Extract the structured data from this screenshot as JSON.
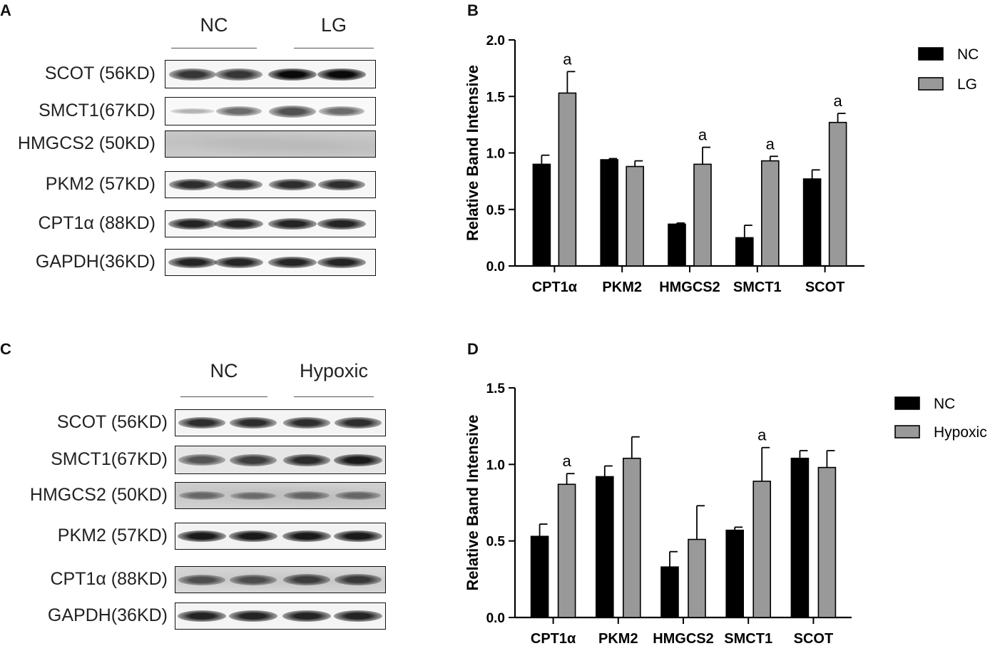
{
  "panels": {
    "a": {
      "letter": "A",
      "groups": [
        "NC",
        "LG"
      ],
      "rows": [
        {
          "label": "SCOT (56KD)",
          "bg": "#f6f6f6",
          "bands": [
            0.75,
            0.75,
            1.0,
            1.0
          ]
        },
        {
          "label": "SMCT1(67KD)",
          "bg": "#f9f9f9",
          "bands": [
            0.05,
            0.45,
            0.6,
            0.45
          ]
        },
        {
          "label": "HMGCS2 (50KD)",
          "bg": "#c9c9c9",
          "bands": [
            0.0,
            0.0,
            0.0,
            0.0
          ]
        },
        {
          "label": "PKM2 (57KD)",
          "bg": "#f7f7f7",
          "bands": [
            0.8,
            0.8,
            0.8,
            0.8
          ]
        },
        {
          "label": "CPT1α (88KD)",
          "bg": "#f7f7f7",
          "bands": [
            0.85,
            0.85,
            0.85,
            0.85
          ]
        },
        {
          "label": "GAPDH(36KD)",
          "bg": "#f7f7f7",
          "bands": [
            0.85,
            0.85,
            0.85,
            0.85
          ]
        }
      ]
    },
    "c": {
      "letter": "C",
      "groups": [
        "NC",
        "Hypoxic"
      ],
      "rows": [
        {
          "label": "SCOT (56KD)",
          "bg": "#f4f4f4",
          "bands": [
            0.8,
            0.8,
            0.8,
            0.8
          ]
        },
        {
          "label": "SMCT1(67KD)",
          "bg": "#e6e6e6",
          "bands": [
            0.55,
            0.7,
            0.8,
            0.9
          ]
        },
        {
          "label": "HMGCS2 (50KD)",
          "bg": "#cfcfcf",
          "bands": [
            0.35,
            0.3,
            0.35,
            0.35
          ]
        },
        {
          "label": "PKM2 (57KD)",
          "bg": "#f2f2f2",
          "bands": [
            0.9,
            0.9,
            0.9,
            0.9
          ]
        },
        {
          "label": "CPT1α (88KD)",
          "bg": "#d8d8d8",
          "bands": [
            0.55,
            0.55,
            0.65,
            0.7
          ]
        },
        {
          "label": "GAPDH(36KD)",
          "bg": "#f4f4f4",
          "bands": [
            0.85,
            0.85,
            0.85,
            0.85
          ]
        }
      ]
    }
  },
  "chart_data": [
    {
      "letter": "B",
      "type": "bar",
      "ylabel": "Relative Band Intensive",
      "ylim": [
        0,
        2.0
      ],
      "yticks": [
        "0.0",
        "0.5",
        "1.0",
        "1.5",
        "2.0"
      ],
      "categories": [
        "CPT1α",
        "PKM2",
        "HMGCS2",
        "SMCT1",
        "SCOT"
      ],
      "series": [
        {
          "name": "NC",
          "color": "#000000",
          "values": [
            0.9,
            0.94,
            0.37,
            0.25,
            0.77
          ],
          "errors": [
            0.08,
            0.01,
            0.01,
            0.11,
            0.08
          ]
        },
        {
          "name": "LG",
          "color": "#999999",
          "values": [
            1.53,
            0.88,
            0.9,
            0.93,
            1.27
          ],
          "errors": [
            0.19,
            0.05,
            0.15,
            0.04,
            0.08
          ]
        }
      ],
      "annotations": [
        {
          "category": 0,
          "series": 1,
          "text": "a"
        },
        {
          "category": 2,
          "series": 1,
          "text": "a"
        },
        {
          "category": 3,
          "series": 1,
          "text": "a"
        },
        {
          "category": 4,
          "series": 1,
          "text": "a"
        }
      ],
      "legend": "top-right"
    },
    {
      "letter": "D",
      "type": "bar",
      "ylabel": "Relative Band Intensive",
      "ylim": [
        0,
        1.5
      ],
      "yticks": [
        "0.0",
        "0.5",
        "1.0",
        "1.5"
      ],
      "categories": [
        "CPT1α",
        "PKM2",
        "HMGCS2",
        "SMCT1",
        "SCOT"
      ],
      "series": [
        {
          "name": "NC",
          "color": "#000000",
          "values": [
            0.53,
            0.92,
            0.33,
            0.57,
            1.04
          ],
          "errors": [
            0.08,
            0.07,
            0.1,
            0.02,
            0.05
          ]
        },
        {
          "name": "Hypoxic",
          "color": "#999999",
          "values": [
            0.87,
            1.04,
            0.51,
            0.89,
            0.98
          ],
          "errors": [
            0.07,
            0.14,
            0.22,
            0.22,
            0.11
          ]
        }
      ],
      "annotations": [
        {
          "category": 0,
          "series": 1,
          "text": "a"
        },
        {
          "category": 3,
          "series": 1,
          "text": "a"
        }
      ],
      "legend": "top-right"
    }
  ]
}
